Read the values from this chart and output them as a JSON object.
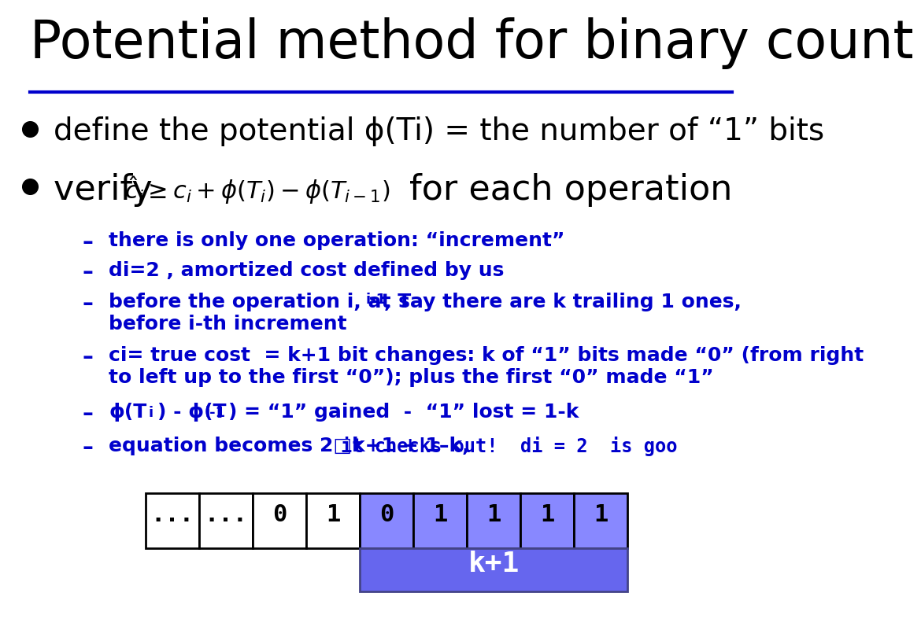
{
  "title": "Potential method for binary count",
  "title_fontsize": 48,
  "title_color": "#000000",
  "line_color": "#0000CC",
  "bg_color": "#ffffff",
  "bullet1": "define the potential ϕ(Ti) = the number of “1” bits",
  "bullet1_fontsize": 28,
  "bullet2_prefix": "verify ",
  "bullet2_suffix": "for each operation",
  "bullet2_fontsize": 32,
  "sub_color": "#0000CC",
  "sub_fontsize": 18,
  "bullet_color": "#000000",
  "sub_bullets_plain": [
    "there is only one operation: “increment”",
    "di=2 , amortized cost defined by us"
  ],
  "sub_bullet3_line1": "before the operation i, at T",
  "sub_bullet3_sub": "i-1",
  "sub_bullet3_rest": ", say there are k trailing 1 ones,",
  "sub_bullet3_line2": "before i-th increment",
  "sub_bullet4_line1": "ci= true cost  = k+1 bit changes: k of “1” bits made “0” (from right",
  "sub_bullet4_line2": "to left up to the first “0”); plus the first “0” made “1”",
  "sub_bullet5_pre1": "ϕ(T",
  "sub_bullet5_sub1": "i",
  "sub_bullet5_mid": ") - ϕ(T",
  "sub_bullet5_sub2": "i-1",
  "sub_bullet5_end": ") = “1” gained  -  “1” lost = 1-k",
  "sub_bullet6_part1": "equation becomes 2□k+1 + 1–k,  ",
  "sub_bullet6_part2": "it checks out!  di = 2  is goo",
  "cells_white": [
    "...",
    "...",
    "0",
    "1"
  ],
  "cells_blue": [
    "0",
    "1",
    "1",
    "1",
    "1"
  ],
  "blue_color": "#8888FF",
  "blue_label_color": "#6666EE",
  "cell_fontsize": 22,
  "label_k1": "k+1",
  "label_k1_color": "#ffffff",
  "label_k1_fontsize": 26
}
